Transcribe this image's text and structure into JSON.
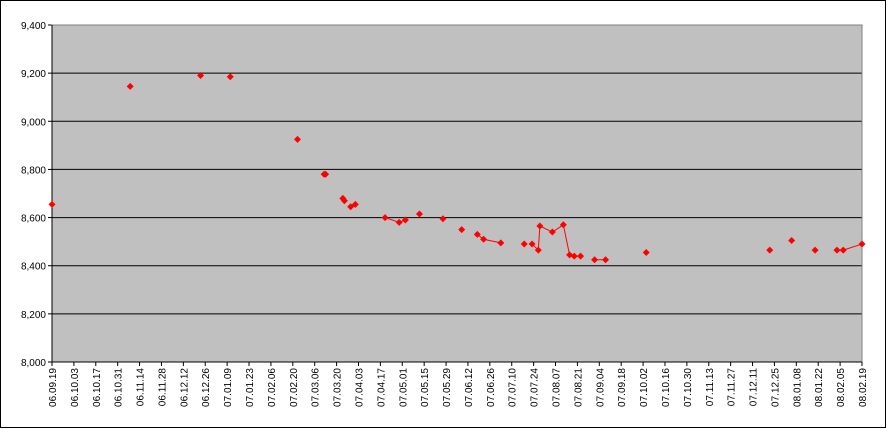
{
  "chart_data": {
    "type": "line",
    "x": [
      "06.09.19",
      null,
      "06.11.08",
      null,
      "06.12.23",
      null,
      "07.01.11",
      null,
      "07.02.23",
      null,
      "07.03.12",
      "07.03.13",
      null,
      "07.03.24",
      "07.03.25",
      null,
      "07.03.29",
      "07.04.01",
      null,
      "07.04.20",
      "07.04.29",
      "07.05.03",
      null,
      "07.05.12",
      null,
      "07.05.27",
      null,
      "07.06.08",
      null,
      "07.06.18",
      "07.06.22",
      "07.07.03",
      null,
      "07.07.18",
      null,
      "07.07.23",
      "07.07.27",
      "07.07.28",
      "07.08.05",
      "07.08.12",
      "07.08.16",
      "07.08.19",
      "07.08.23",
      null,
      "07.09.01",
      "07.09.08",
      null,
      "07.10.04",
      null,
      "07.12.22",
      null,
      "08.01.05",
      null,
      "08.01.20",
      null,
      "08.02.03",
      "08.02.07",
      "08.02.19"
    ],
    "series": [
      {
        "color": "#ff0000",
        "values": [
          8655,
          null,
          9145,
          null,
          9190,
          null,
          9185,
          null,
          8925,
          null,
          8780,
          8780,
          null,
          8680,
          8670,
          null,
          8645,
          8655,
          null,
          8600,
          8580,
          8590,
          null,
          8615,
          null,
          8595,
          null,
          8550,
          null,
          8530,
          8510,
          8495,
          null,
          8490,
          null,
          8490,
          8465,
          8565,
          8540,
          8570,
          8445,
          8440,
          8440,
          null,
          8425,
          8425,
          null,
          8455,
          null,
          8465,
          null,
          8505,
          null,
          8465,
          null,
          8465,
          8465,
          8490
        ]
      }
    ],
    "xlim": [
      "06.09.19",
      "08.02.19"
    ],
    "xticks": [
      "06.09.19",
      "06.10.03",
      "06.10.17",
      "06.10.31",
      "06.11.14",
      "06.11.28",
      "06.12.12",
      "06.12.26",
      "07.01.09",
      "07.01.23",
      "07.02.06",
      "07.02.20",
      "07.03.06",
      "07.03.20",
      "07.04.03",
      "07.04.17",
      "07.05.01",
      "07.05.15",
      "07.05.29",
      "07.06.12",
      "07.06.26",
      "07.07.10",
      "07.07.24",
      "07.08.07",
      "07.08.21",
      "07.09.04",
      "07.09.18",
      "07.10.02",
      "07.10.16",
      "07.10.30",
      "07.11.13",
      "07.11.27",
      "07.12.11",
      "07.12.25",
      "08.01.08",
      "08.01.22",
      "08.02.05",
      "08.02.19"
    ],
    "ylim": [
      8000,
      9400
    ],
    "yticks": [
      {
        "value": 8000,
        "label": "8,000"
      },
      {
        "value": 8200,
        "label": "8,200"
      },
      {
        "value": 8400,
        "label": "8,400"
      },
      {
        "value": 8600,
        "label": "8,600"
      },
      {
        "value": 8800,
        "label": "8,800"
      },
      {
        "value": 9000,
        "label": "9,000"
      },
      {
        "value": 9200,
        "label": "9,200"
      },
      {
        "value": 9400,
        "label": "9,400"
      }
    ],
    "grid": true
  }
}
